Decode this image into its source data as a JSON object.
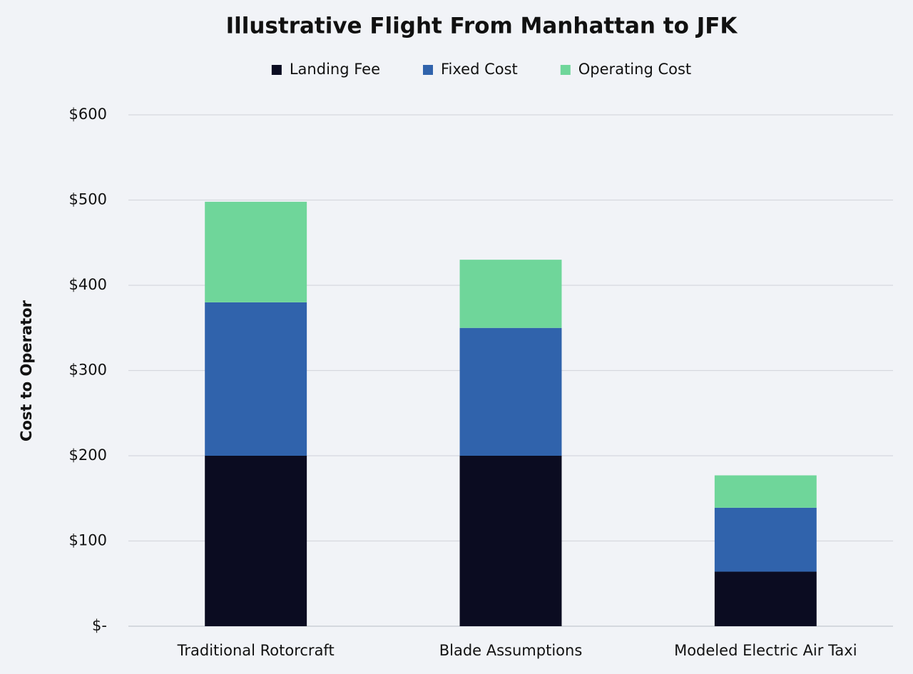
{
  "chart_data": {
    "type": "stacked_bar",
    "title": "Illustrative Flight From Manhattan to JFK",
    "y_label": "Cost to Operator",
    "categories": [
      "Traditional Rotorcraft",
      "Blade Assumptions",
      "Modeled Electric Air Taxi"
    ],
    "series": [
      {
        "name": "Landing Fee",
        "color": "#0b0c21",
        "values": [
          200,
          200,
          64
        ]
      },
      {
        "name": "Fixed Cost",
        "color": "#3063ac",
        "values": [
          180,
          150,
          75
        ]
      },
      {
        "name": "Operating Cost",
        "color": "#6fd69a",
        "values": [
          118,
          80,
          38
        ]
      }
    ],
    "ylim": [
      0,
      600
    ],
    "yticks": [
      {
        "value": 0,
        "label": "$-"
      },
      {
        "value": 100,
        "label": "$100"
      },
      {
        "value": 200,
        "label": "$200"
      },
      {
        "value": 300,
        "label": "$300"
      },
      {
        "value": 400,
        "label": "$400"
      },
      {
        "value": 500,
        "label": "$500"
      },
      {
        "value": 600,
        "label": "$600"
      }
    ],
    "grid": true,
    "legend": "top"
  }
}
